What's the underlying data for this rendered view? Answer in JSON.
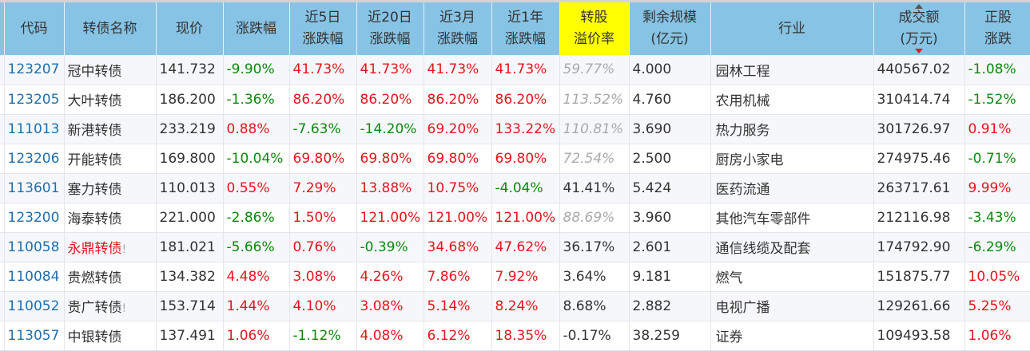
{
  "headers": [
    "代码",
    "转债名称",
    "现价",
    "涨跌幅",
    "近5日\n涨跌幅",
    "近20日\n涨跌幅",
    "近3月\n涨跌幅",
    "近1年\n涨跌幅",
    "转股\n溢价率",
    "剩余规模\n(亿元)",
    "行业",
    "成交额\n(万元)",
    "正股\n涨跌"
  ],
  "highlight_color": "#ffff00",
  "header_color": "#87c3e4",
  "sorted_column": "成交额(万元)",
  "rows": [
    {
      "code": "123207",
      "name": "冠中转债",
      "name_red": false,
      "warn": "",
      "price": "141.732",
      "chg": "-9.90%",
      "d5": "41.73%",
      "d20": "41.73%",
      "m3": "41.73%",
      "y1": "41.73%",
      "premium": "59.77%",
      "prem_italic": true,
      "size": "4.000",
      "industry": "园林工程",
      "amount": "440567.02",
      "stock": "-1.08%"
    },
    {
      "code": "123205",
      "name": "大叶转债",
      "name_red": false,
      "warn": "",
      "price": "186.200",
      "chg": "-1.36%",
      "d5": "86.20%",
      "d20": "86.20%",
      "m3": "86.20%",
      "y1": "86.20%",
      "premium": "113.52%",
      "prem_italic": true,
      "size": "4.760",
      "industry": "农用机械",
      "amount": "310414.74",
      "stock": "-1.52%"
    },
    {
      "code": "111013",
      "name": "新港转债",
      "name_red": false,
      "warn": "",
      "price": "233.219",
      "chg": "0.88%",
      "d5": "-7.63%",
      "d20": "-14.20%",
      "m3": "69.20%",
      "y1": "133.22%",
      "premium": "110.81%",
      "prem_italic": true,
      "size": "3.690",
      "industry": "热力服务",
      "amount": "301726.97",
      "stock": "0.91%"
    },
    {
      "code": "123206",
      "name": "开能转债",
      "name_red": false,
      "warn": "",
      "price": "169.800",
      "chg": "-10.04%",
      "d5": "69.80%",
      "d20": "69.80%",
      "m3": "69.80%",
      "y1": "69.80%",
      "premium": "72.54%",
      "prem_italic": true,
      "size": "2.500",
      "industry": "厨房小家电",
      "amount": "274975.46",
      "stock": "-0.71%"
    },
    {
      "code": "113601",
      "name": "塞力转债",
      "name_red": false,
      "warn": "",
      "price": "110.013",
      "chg": "0.55%",
      "d5": "7.29%",
      "d20": "13.88%",
      "m3": "10.75%",
      "y1": "-4.04%",
      "premium": "41.41%",
      "prem_italic": false,
      "size": "5.424",
      "industry": "医药流通",
      "amount": "263717.61",
      "stock": "9.99%"
    },
    {
      "code": "123200",
      "name": "海泰转债",
      "name_red": false,
      "warn": "",
      "price": "221.000",
      "chg": "-2.86%",
      "d5": "1.50%",
      "d20": "121.00%",
      "m3": "121.00%",
      "y1": "121.00%",
      "premium": "88.69%",
      "prem_italic": true,
      "size": "3.960",
      "industry": "其他汽车零部件",
      "amount": "212116.98",
      "stock": "-3.43%"
    },
    {
      "code": "110058",
      "name": "永鼎转债",
      "name_red": true,
      "warn": "!",
      "price": "181.021",
      "chg": "-5.66%",
      "d5": "0.76%",
      "d20": "-0.39%",
      "m3": "34.68%",
      "y1": "47.62%",
      "premium": "36.17%",
      "prem_italic": false,
      "size": "2.601",
      "industry": "通信线缆及配套",
      "amount": "174792.90",
      "stock": "-6.29%"
    },
    {
      "code": "110084",
      "name": "贵燃转债",
      "name_red": false,
      "warn": "",
      "price": "134.382",
      "chg": "4.48%",
      "d5": "3.08%",
      "d20": "4.26%",
      "m3": "7.86%",
      "y1": "7.92%",
      "premium": "3.64%",
      "prem_italic": false,
      "size": "9.181",
      "industry": "燃气",
      "amount": "151875.77",
      "stock": "10.05%"
    },
    {
      "code": "110052",
      "name": "贵广转债",
      "name_red": false,
      "warn": "!",
      "price": "153.714",
      "chg": "1.44%",
      "d5": "4.10%",
      "d20": "3.08%",
      "m3": "5.14%",
      "y1": "8.24%",
      "premium": "8.68%",
      "prem_italic": false,
      "size": "2.882",
      "industry": "电视广播",
      "amount": "129261.66",
      "stock": "5.25%"
    },
    {
      "code": "113057",
      "name": "中银转债",
      "name_red": false,
      "warn": "",
      "price": "137.491",
      "chg": "1.06%",
      "d5": "-1.12%",
      "d20": "4.08%",
      "m3": "6.12%",
      "y1": "18.35%",
      "premium": "-0.17%",
      "prem_italic": false,
      "size": "38.259",
      "industry": "证券",
      "amount": "109493.58",
      "stock": "1.06%"
    }
  ]
}
